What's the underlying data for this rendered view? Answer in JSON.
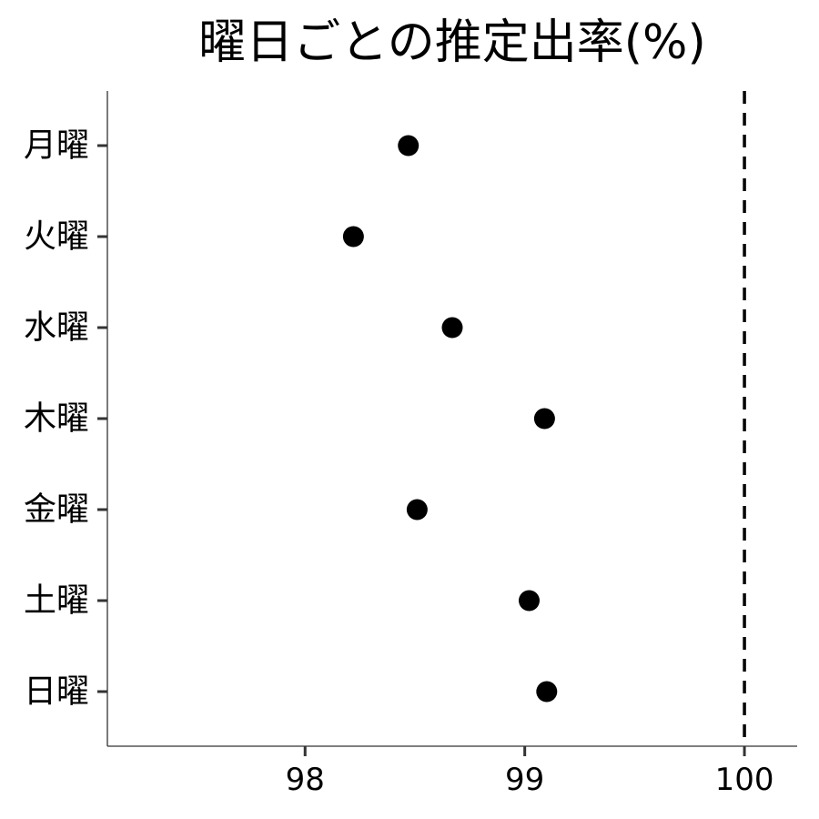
{
  "chart_data": {
    "type": "scatter",
    "title": "曜日ごとの推定出率(%)",
    "xlabel": "",
    "ylabel": "",
    "categories": [
      "月曜",
      "火曜",
      "水曜",
      "木曜",
      "金曜",
      "土曜",
      "日曜"
    ],
    "values": [
      98.47,
      98.22,
      98.67,
      99.09,
      98.51,
      99.02,
      99.1
    ],
    "xlim": [
      97.1,
      100.24
    ],
    "xticks": [
      98,
      99,
      100
    ],
    "reference_line": {
      "x": 100,
      "style": "dashed"
    },
    "grid": false,
    "legend": "none",
    "colors": {
      "point": "#000000",
      "axis": "#333333",
      "reference": "#000000"
    }
  }
}
